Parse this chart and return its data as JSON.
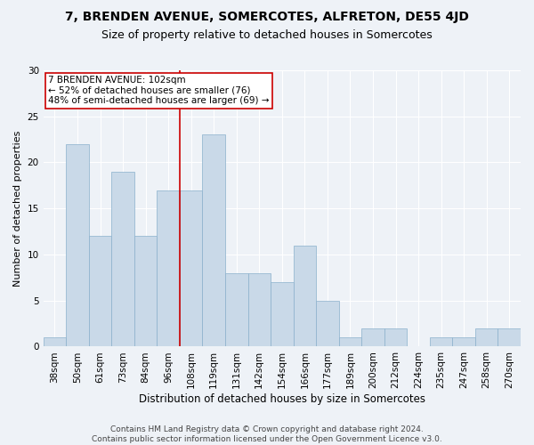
{
  "title": "7, BRENDEN AVENUE, SOMERCOTES, ALFRETON, DE55 4JD",
  "subtitle": "Size of property relative to detached houses in Somercotes",
  "xlabel": "Distribution of detached houses by size in Somercotes",
  "ylabel": "Number of detached properties",
  "categories": [
    "38sqm",
    "50sqm",
    "61sqm",
    "73sqm",
    "84sqm",
    "96sqm",
    "108sqm",
    "119sqm",
    "131sqm",
    "142sqm",
    "154sqm",
    "166sqm",
    "177sqm",
    "189sqm",
    "200sqm",
    "212sqm",
    "224sqm",
    "235sqm",
    "247sqm",
    "258sqm",
    "270sqm"
  ],
  "values": [
    1,
    22,
    12,
    19,
    12,
    17,
    17,
    23,
    8,
    8,
    7,
    11,
    5,
    1,
    2,
    2,
    0,
    1,
    1,
    2,
    2
  ],
  "bar_color": "#c9d9e8",
  "bar_edge_color": "#8ab0cc",
  "bar_edge_width": 0.5,
  "annotation_text": "7 BRENDEN AVENUE: 102sqm\n← 52% of detached houses are smaller (76)\n48% of semi-detached houses are larger (69) →",
  "vline_x_index": 6.0,
  "vline_color": "#cc0000",
  "box_color": "#cc0000",
  "ylim": [
    0,
    30
  ],
  "yticks": [
    0,
    5,
    10,
    15,
    20,
    25,
    30
  ],
  "background_color": "#eef2f7",
  "plot_background": "#eef2f7",
  "grid_color": "#ffffff",
  "footer_line1": "Contains HM Land Registry data © Crown copyright and database right 2024.",
  "footer_line2": "Contains public sector information licensed under the Open Government Licence v3.0.",
  "title_fontsize": 10,
  "subtitle_fontsize": 9,
  "xlabel_fontsize": 8.5,
  "ylabel_fontsize": 8,
  "tick_fontsize": 7.5,
  "annotation_fontsize": 7.5,
  "footer_fontsize": 6.5
}
